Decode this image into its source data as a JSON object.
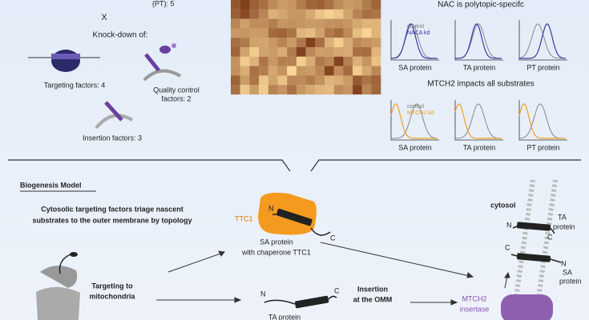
{
  "screen": {
    "top_left": {
      "partial_label": "(PT): 5",
      "cross": "X",
      "knockdown_title": "Knock-down of:",
      "targeting": "Targeting factors: 4",
      "quality_control": [
        "Quality control",
        "factors: 2"
      ],
      "insertion": "Insertion factors: 3"
    },
    "nac_panel": {
      "title": "NAC is polytopic-specifc",
      "legend": [
        "control",
        "NACA kd"
      ],
      "plots": [
        "SA protein",
        "TA protein",
        "PT protein"
      ]
    },
    "mtch2_panel": {
      "title": "MTCH2 impacts all substrates",
      "legend": [
        "control",
        "MTCH2 kd"
      ],
      "plots": [
        "SA protein",
        "TA protein",
        "PT protein"
      ]
    },
    "model": {
      "heading": "Biogenesis Model",
      "summary": [
        "Cytosolic targeting factors triage nascent",
        "substrates to the outer membrane by topology"
      ],
      "chaperone": "TTC1",
      "sa_n": "N",
      "sa_c": "C",
      "sa_caption": [
        "SA protein",
        "with chaperone TTC1"
      ],
      "targeting": [
        "Targeting to",
        "mitochondria"
      ],
      "insertion": [
        "Insertion",
        "at the OMM"
      ],
      "ta_n": "N",
      "ta_c": "C",
      "ta_caption": "TA protein",
      "cytosol": "cytosol",
      "mem_ta_n": "N",
      "mem_ta_c": "C",
      "mem_ta_label": [
        "TA",
        "protein"
      ],
      "mem_sa_c": "C",
      "mem_sa_n": "N",
      "mem_sa_label": [
        "SA",
        "protein"
      ],
      "insertase": [
        "MTCH2",
        "insertase"
      ]
    }
  }
}
